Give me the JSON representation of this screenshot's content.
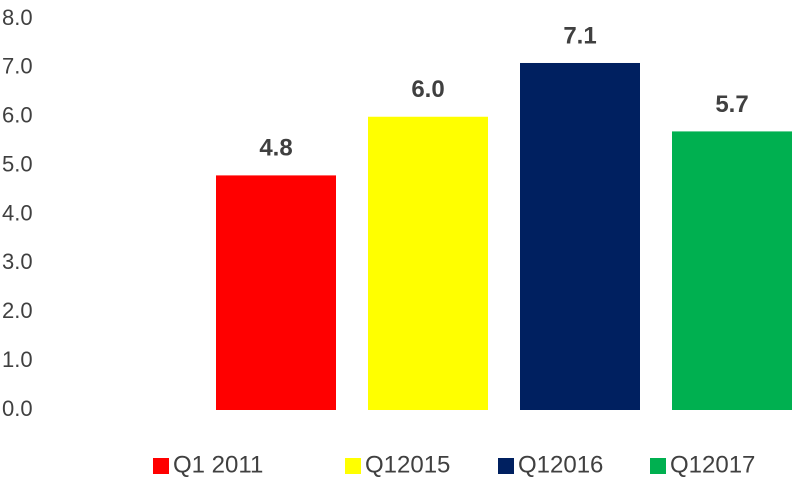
{
  "chart_data": {
    "type": "bar",
    "series": [
      {
        "name": "Q1 2011",
        "color": "#ff0000",
        "values": [
          4.8
        ],
        "value_labels": [
          "4.8"
        ]
      },
      {
        "name": "Q12015",
        "color": "#ffff00",
        "values": [
          6.0
        ],
        "value_labels": [
          "6.0"
        ]
      },
      {
        "name": "Q12016",
        "color": "#002060",
        "values": [
          7.1
        ],
        "value_labels": [
          "7.1"
        ]
      },
      {
        "name": "Q12017",
        "color": "#00b050",
        "values": [
          5.7
        ],
        "value_labels": [
          "5.7"
        ]
      }
    ],
    "ylim": [
      0,
      8
    ],
    "yticks": [
      {
        "value": 0,
        "label": "0.0"
      },
      {
        "value": 1,
        "label": "1.0"
      },
      {
        "value": 2,
        "label": "2.0"
      },
      {
        "value": 3,
        "label": "3.0"
      },
      {
        "value": 4,
        "label": "4.0"
      },
      {
        "value": 5,
        "label": "5.0"
      },
      {
        "value": 6,
        "label": "6.0"
      },
      {
        "value": 7,
        "label": "7.0"
      },
      {
        "value": 8,
        "label": "8.0"
      }
    ],
    "grid": false,
    "legend": "bottom"
  }
}
